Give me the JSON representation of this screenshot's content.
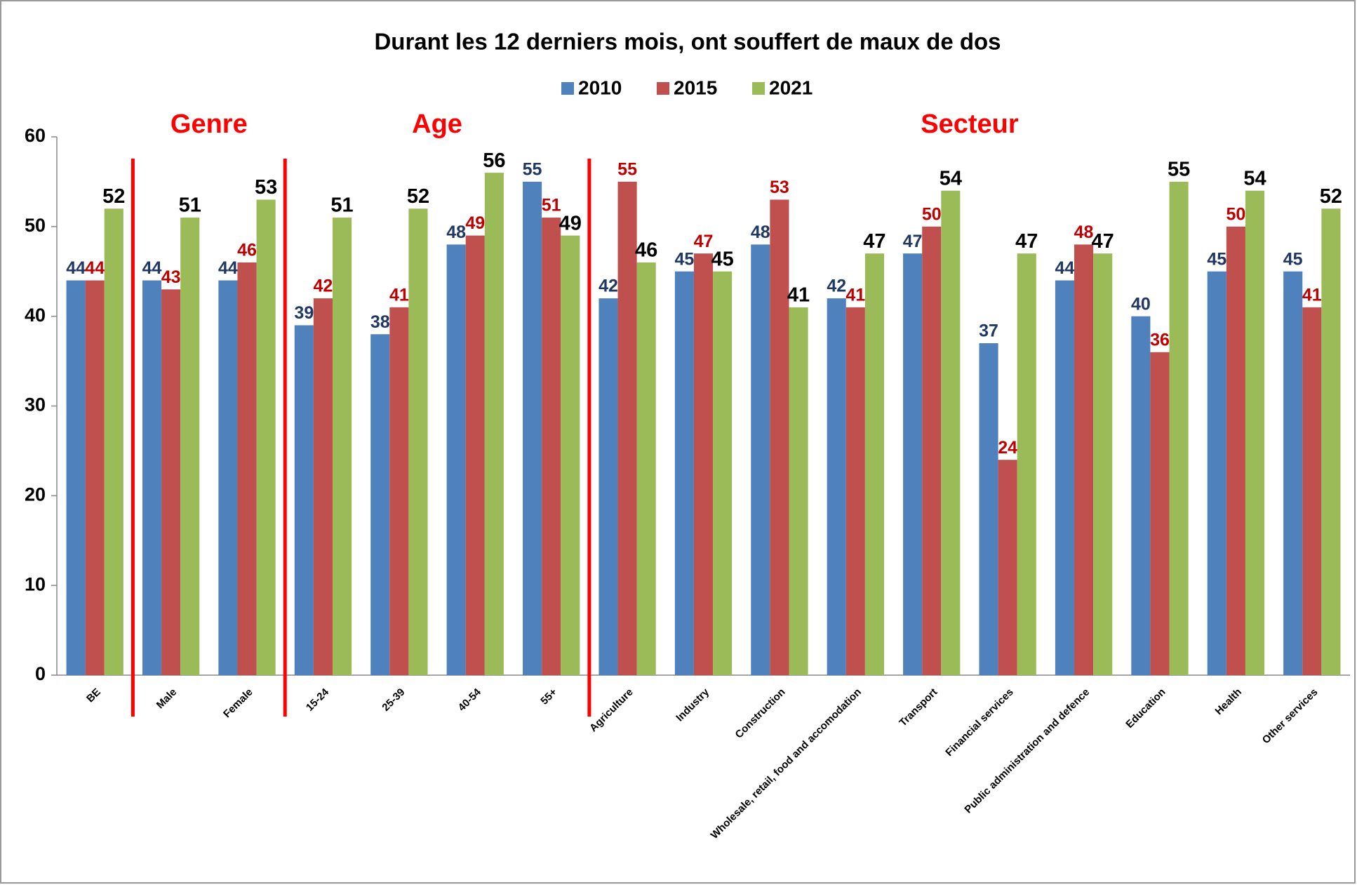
{
  "chart_data": {
    "type": "bar",
    "title": "Durant les 12 derniers mois, ont souffert de maux de dos",
    "categories": [
      "BE",
      "Male",
      "Female",
      "15-24",
      "25-39",
      "40-54",
      "55+",
      "Agriculture",
      "Industry",
      "Construction",
      "Wholesale, retail, food and accomodation",
      "Transport",
      "Financial services",
      "Public administration and defence",
      "Education",
      "Health",
      "Other services"
    ],
    "series": [
      {
        "name": "2010",
        "color": "#4f81bd",
        "label_color": "#1f3864",
        "values": [
          44,
          44,
          44,
          39,
          38,
          48,
          55,
          42,
          45,
          48,
          42,
          47,
          37,
          44,
          40,
          45,
          45
        ]
      },
      {
        "name": "2015",
        "color": "#c0504d",
        "label_color": "#c00000",
        "values": [
          44,
          43,
          46,
          42,
          41,
          49,
          51,
          55,
          47,
          53,
          41,
          50,
          24,
          48,
          36,
          50,
          41
        ]
      },
      {
        "name": "2021",
        "color": "#9bbb59",
        "label_color": "#000000",
        "values": [
          52,
          51,
          53,
          51,
          52,
          56,
          49,
          46,
          45,
          41,
          47,
          54,
          47,
          47,
          55,
          54,
          52
        ]
      }
    ],
    "annotations": [
      "Genre",
      "Age",
      "Secteur"
    ],
    "ylim": [
      0,
      60
    ],
    "yticks": [
      0,
      10,
      20,
      30,
      40,
      50,
      60
    ],
    "grid": false,
    "legend": "top"
  }
}
